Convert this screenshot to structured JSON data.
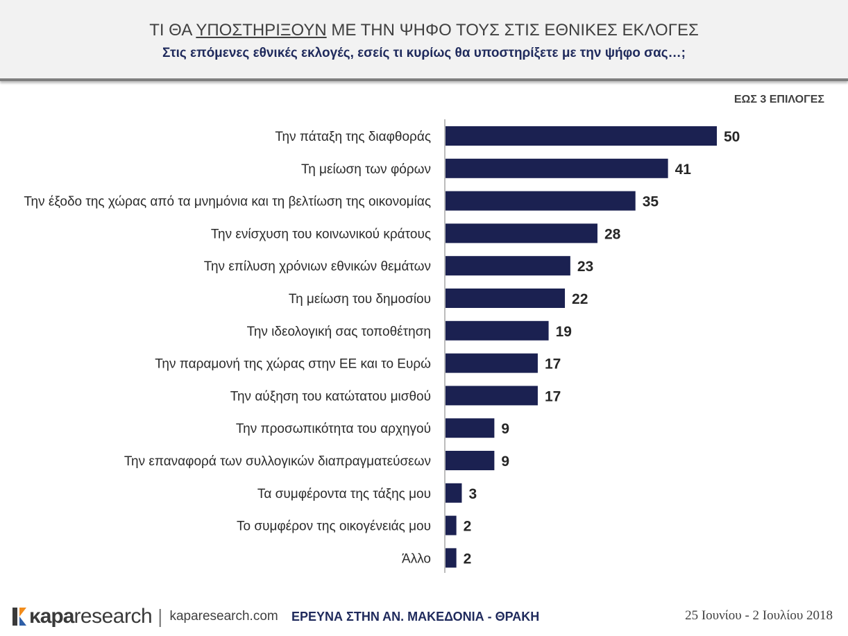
{
  "header": {
    "title_prefix": "ΤΙ ΘΑ ",
    "title_underlined": "ΥΠΟΣΤΗΡΙΞΟΥΝ",
    "title_suffix": " ΜΕ ΤΗΝ ΨΗΦΟ ΤΟΥΣ ΣΤΙΣ ΕΘΝΙΚΕΣ ΕΚΛΟΓΕΣ",
    "subtitle": "Στις επόμενες εθνικές εκλογές, εσείς τι κυρίως θα υποστηρίξετε με την ψήφο σας…;"
  },
  "note": "ΕΩΣ 3 ΕΠΙΛΟΓΕΣ",
  "colors": {
    "bar": "#1b2151",
    "label": "#2b2b2b",
    "axis": "#a6a6a6",
    "logo_orange": "#f28c1b",
    "logo_blue": "#2f5fa7"
  },
  "chart_data": {
    "type": "bar",
    "orientation": "horizontal",
    "categories": [
      "Την πάταξη της διαφθοράς",
      "Τη μείωση των φόρων",
      "Την έξοδο της χώρας από τα μνημόνια και τη βελτίωση της οικονομίας",
      "Την ενίσχυση του κοινωνικού κράτους",
      "Την επίλυση χρόνιων εθνικών θεμάτων",
      "Τη μείωση του δημοσίου",
      "Την ιδεολογική σας τοποθέτηση",
      "Την παραμονή της χώρας στην ΕΕ και το Ευρώ",
      "Την αύξηση του κατώτατου μισθού",
      "Την προσωπικότητα του αρχηγού",
      "Την επαναφορά των συλλογικών διαπραγματεύσεων",
      "Τα συμφέροντα της τάξης μου",
      "Το συμφέρον της οικογένειάς μου",
      "Άλλο"
    ],
    "values": [
      50,
      41,
      35,
      28,
      23,
      22,
      19,
      17,
      17,
      9,
      9,
      3,
      2,
      2
    ],
    "xlim": [
      0,
      50
    ],
    "data_labels": true
  },
  "footer": {
    "logo_kapa": "κapa",
    "logo_research": "research",
    "logo_separator": "|",
    "url": "kaparesearch.com",
    "study": "ΕΡΕΥΝΑ ΣΤΗΝ ΑΝ. ΜΑΚΕΔΟΝΙΑ - ΘΡΑΚΗ",
    "dates": "25 Ιουνίου - 2 Ιουλίου 2018"
  }
}
